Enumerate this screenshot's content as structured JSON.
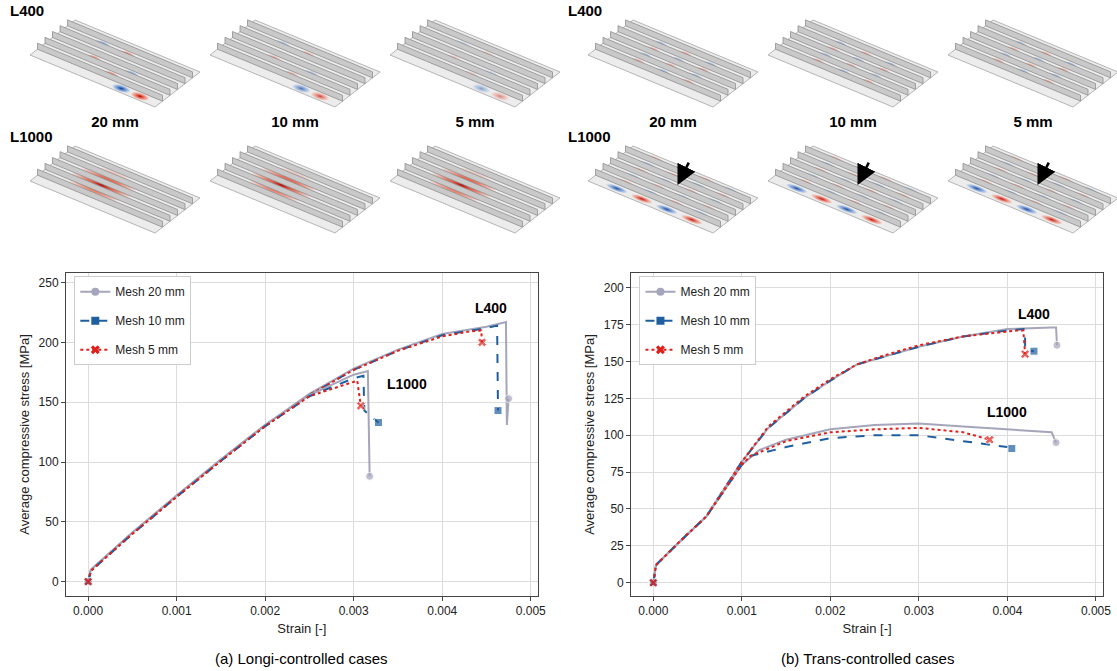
{
  "figure": {
    "mode_shapes": [
      {
        "rows": [
          "L400",
          "L1000"
        ],
        "meshes": [
          "20 mm",
          "10 mm",
          "5 mm"
        ]
      },
      {
        "rows": [
          "L400",
          "L1000"
        ],
        "meshes": [
          "20 mm",
          "10 mm",
          "5 mm"
        ]
      }
    ]
  },
  "chart_data": [
    {
      "type": "line",
      "title": "(a) Longi-controlled cases",
      "x_label": "Strain [-]",
      "y_label": "Average compressive stress [MPa]",
      "xlim": [
        -0.00025,
        0.00508
      ],
      "ylim": [
        -12,
        258
      ],
      "xticks": [
        {
          "value": 0,
          "label": "0.000"
        },
        {
          "value": 0.001,
          "label": "0.001"
        },
        {
          "value": 0.002,
          "label": "0.002"
        },
        {
          "value": 0.003,
          "label": "0.003"
        },
        {
          "value": 0.004,
          "label": "0.004"
        },
        {
          "value": 0.005,
          "label": "0.005"
        }
      ],
      "yticks": [
        0,
        50,
        100,
        150,
        200,
        250
      ],
      "grid": true,
      "legend": "upper left",
      "annotations": [
        {
          "text": "L400",
          "x": 0.00455,
          "y": 229
        },
        {
          "text": "L1000",
          "x": 0.0036,
          "y": 165
        }
      ],
      "series": [
        {
          "name": "Mesh 20 mm",
          "case": "L400",
          "color": "#a5a5bb",
          "line_style": "solid",
          "marker": "circle",
          "x": [
            0,
            3e-05,
            0.0005,
            0.001,
            0.0015,
            0.002,
            0.0025,
            0.003,
            0.0035,
            0.004,
            0.0045,
            0.00472,
            0.00473,
            0.00475
          ],
          "values": [
            0,
            10,
            41,
            72,
            102,
            131,
            157,
            178,
            194,
            207,
            213,
            217,
            131,
            153
          ]
        },
        {
          "name": "Mesh 10 mm",
          "case": "L400",
          "color": "#1f5f9f",
          "line_style": "dash",
          "marker": "square",
          "x": [
            0,
            3e-05,
            0.0005,
            0.001,
            0.0015,
            0.002,
            0.0025,
            0.003,
            0.0035,
            0.004,
            0.0045,
            0.00462,
            0.00463
          ],
          "values": [
            0,
            9,
            40,
            71,
            101,
            130,
            156,
            177,
            193,
            206,
            212,
            214,
            143
          ]
        },
        {
          "name": "Mesh 5 mm",
          "case": "L400",
          "color": "#e0201b",
          "line_style": "dot",
          "marker": "x",
          "x": [
            0,
            3e-05,
            0.0005,
            0.001,
            0.0015,
            0.002,
            0.0025,
            0.003,
            0.0035,
            0.004,
            0.0043,
            0.00444,
            0.00445
          ],
          "values": [
            0,
            9,
            40,
            71,
            101,
            130,
            156,
            177,
            193,
            205,
            209,
            210,
            200
          ]
        },
        {
          "name": "Mesh 20 mm",
          "case": "L1000",
          "color": "#a5a5bb",
          "line_style": "solid",
          "marker": "circle",
          "x": [
            0,
            3e-05,
            0.0005,
            0.001,
            0.0015,
            0.002,
            0.0025,
            0.003,
            0.00316,
            0.00318
          ],
          "values": [
            0,
            10,
            41,
            72,
            102,
            131,
            156,
            173,
            176,
            88
          ]
        },
        {
          "name": "Mesh 10 mm",
          "case": "L1000",
          "color": "#1f5f9f",
          "line_style": "dash",
          "marker": "square",
          "x": [
            0,
            3e-05,
            0.0005,
            0.001,
            0.0015,
            0.002,
            0.0025,
            0.003,
            0.00311,
            0.00312,
            0.00328
          ],
          "values": [
            0,
            9,
            40,
            71,
            101,
            130,
            155,
            170,
            172,
            143,
            133
          ]
        },
        {
          "name": "Mesh 5 mm",
          "case": "L1000",
          "color": "#e0201b",
          "line_style": "dot",
          "marker": "x",
          "x": [
            0,
            3e-05,
            0.0005,
            0.001,
            0.0015,
            0.002,
            0.0025,
            0.003,
            0.00304,
            0.00308
          ],
          "values": [
            0,
            9,
            40,
            71,
            101,
            130,
            155,
            167,
            168,
            147
          ]
        }
      ]
    },
    {
      "type": "line",
      "title": "(b) Trans-controlled cases",
      "x_label": "Strain [-]",
      "y_label": "Average compressive stress [MPa]",
      "xlim": [
        -0.00025,
        0.00508
      ],
      "ylim": [
        -9,
        210
      ],
      "xticks": [
        {
          "value": 0,
          "label": "0.000"
        },
        {
          "value": 0.001,
          "label": "0.001"
        },
        {
          "value": 0.002,
          "label": "0.002"
        },
        {
          "value": 0.003,
          "label": "0.003"
        },
        {
          "value": 0.004,
          "label": "0.004"
        },
        {
          "value": 0.005,
          "label": "0.005"
        }
      ],
      "yticks": [
        0,
        25,
        50,
        75,
        100,
        125,
        150,
        175,
        200
      ],
      "grid": true,
      "legend": "upper left",
      "annotations": [
        {
          "text": "L400",
          "x": 0.0043,
          "y": 182
        },
        {
          "text": "L1000",
          "x": 0.004,
          "y": 116
        }
      ],
      "series": [
        {
          "name": "Mesh 20 mm",
          "case": "L400",
          "color": "#a5a5bb",
          "line_style": "solid",
          "marker": "circle",
          "x": [
            0,
            3e-05,
            0.0003,
            0.0006,
            0.001,
            0.0013,
            0.0017,
            0.002,
            0.0023,
            0.0026,
            0.003,
            0.0035,
            0.004,
            0.0045,
            0.00455,
            0.00456
          ],
          "values": [
            0,
            12,
            28,
            45,
            82,
            105,
            125,
            137,
            148,
            153,
            160,
            167,
            172,
            173,
            173,
            161
          ]
        },
        {
          "name": "Mesh 10 mm",
          "case": "L400",
          "color": "#1f5f9f",
          "line_style": "dash",
          "marker": "square",
          "x": [
            0,
            3e-05,
            0.0003,
            0.0006,
            0.001,
            0.0013,
            0.0017,
            0.002,
            0.0023,
            0.0026,
            0.003,
            0.0035,
            0.004,
            0.0042,
            0.0042,
            0.0043
          ],
          "values": [
            0,
            12,
            28,
            45,
            82,
            105,
            125,
            137,
            148,
            153,
            160,
            167,
            171,
            172,
            158,
            157
          ]
        },
        {
          "name": "Mesh 5 mm",
          "case": "L400",
          "color": "#e0201b",
          "line_style": "dot",
          "marker": "x",
          "x": [
            0,
            3e-05,
            0.0003,
            0.0006,
            0.001,
            0.0013,
            0.0017,
            0.002,
            0.0023,
            0.0026,
            0.003,
            0.0035,
            0.0041,
            0.00418,
            0.0042
          ],
          "values": [
            0,
            12,
            28,
            45,
            82,
            106,
            126,
            138,
            148,
            154,
            161,
            167,
            171,
            171,
            155
          ]
        },
        {
          "name": "Mesh 20 mm",
          "case": "L1000",
          "color": "#a5a5bb",
          "line_style": "solid",
          "marker": "circle",
          "x": [
            0,
            3e-05,
            0.0003,
            0.0006,
            0.001,
            0.0012,
            0.0015,
            0.002,
            0.0025,
            0.003,
            0.0035,
            0.004,
            0.0045,
            0.00455
          ],
          "values": [
            0,
            12,
            28,
            45,
            80,
            90,
            97,
            104,
            107,
            108,
            106,
            104,
            102,
            95
          ]
        },
        {
          "name": "Mesh 10 mm",
          "case": "L1000",
          "color": "#1f5f9f",
          "line_style": "dash",
          "marker": "square",
          "x": [
            0,
            3e-05,
            0.0003,
            0.0006,
            0.001,
            0.0011,
            0.0015,
            0.002,
            0.0025,
            0.003,
            0.0035,
            0.004,
            0.00405
          ],
          "values": [
            0,
            12,
            28,
            45,
            80,
            86,
            92,
            98,
            100,
            100,
            96,
            92,
            91
          ]
        },
        {
          "name": "Mesh 5 mm",
          "case": "L1000",
          "color": "#e0201b",
          "line_style": "dot",
          "marker": "x",
          "x": [
            0,
            3e-05,
            0.0003,
            0.0006,
            0.001,
            0.0011,
            0.0015,
            0.002,
            0.0025,
            0.003,
            0.0035,
            0.0038
          ],
          "values": [
            0,
            12,
            28,
            45,
            80,
            86,
            96,
            102,
            104,
            105,
            102,
            97
          ]
        }
      ]
    }
  ]
}
